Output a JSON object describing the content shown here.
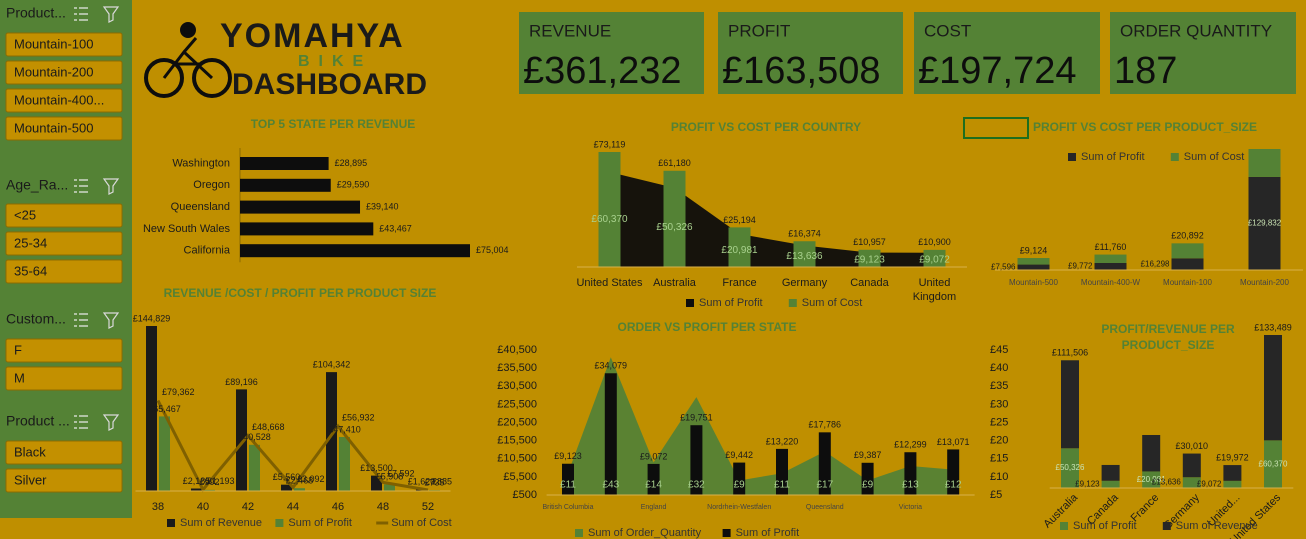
{
  "slicers": [
    {
      "title": "Product...",
      "items": [
        "Mountain-100",
        "Mountain-200",
        "Mountain-400...",
        "Mountain-500"
      ]
    },
    {
      "title": "Age_Ra...",
      "items": [
        "<25",
        "25-34",
        "35-64"
      ]
    },
    {
      "title": "Custom...",
      "items": [
        "F",
        "M"
      ]
    },
    {
      "title": "Product ...",
      "items": [
        "Black",
        "Silver"
      ]
    }
  ],
  "logo": {
    "brand": "YOMAHYA",
    "sub": "BIKE",
    "title": "DASHBOARD"
  },
  "kpis": [
    {
      "label": "REVENUE",
      "value": "£361,232"
    },
    {
      "label": "PROFIT",
      "value": "£163,508"
    },
    {
      "label": "COST",
      "value": "£197,724"
    },
    {
      "label": "ORDER QUANTITY",
      "value": "187"
    }
  ],
  "chart_data": [
    {
      "type": "bar",
      "orientation": "horizontal",
      "title": "TOP 5 STATE PER REVENUE",
      "categories": [
        "Washington",
        "Oregon",
        "Queensland",
        "New South Wales",
        "California"
      ],
      "values": [
        28895,
        29590,
        39140,
        43467,
        75004
      ],
      "value_labels": [
        "£28,895",
        "£29,590",
        "£39,140",
        "£43,467",
        "£75,004"
      ],
      "color": "#0d0d0d"
    },
    {
      "type": "combo",
      "title": "PROFIT VS COST PER COUNTRY",
      "categories": [
        "United States",
        "Australia",
        "France",
        "Germany",
        "Canada",
        "United Kingdom"
      ],
      "series": [
        {
          "name": "Sum of Profit",
          "kind": "area",
          "color": "#0d0d0d",
          "values": [
            60370,
            50326,
            20981,
            13636,
            9123,
            9072
          ],
          "value_labels": [
            "£60,370",
            "£50,326",
            "£20,981",
            "£13,636",
            "£9,123",
            "£9,072"
          ]
        },
        {
          "name": "Sum of Cost",
          "kind": "bar",
          "color": "#548235",
          "values": [
            73119,
            61180,
            25194,
            16374,
            10957,
            10900
          ],
          "value_labels": [
            "£73,119",
            "£61,180",
            "£25,194",
            "£16,374",
            "£10,957",
            "£10,900"
          ]
        }
      ]
    },
    {
      "type": "combo",
      "stacked": true,
      "title": "PROFIT VS COST PER PRODUCT_SIZE",
      "categories": [
        "Mountain-500",
        "Mountain-400-W",
        "Mountain-100",
        "Mountain-200"
      ],
      "series": [
        {
          "name": "Sum of Profit",
          "kind": "bar",
          "color": "#262626",
          "values": [
            7596,
            9772,
            16298,
            129832
          ],
          "value_labels": [
            "£7,596",
            "£9,772",
            "£16,298",
            "£129,832"
          ]
        },
        {
          "name": "Sum of Cost",
          "kind": "bar",
          "color": "#548235",
          "values": [
            9124,
            11760,
            20892,
            39000
          ],
          "value_labels": [
            "£9,124",
            "£11,760",
            "£20,892",
            null
          ]
        }
      ]
    },
    {
      "type": "combo",
      "title": "REVENUE /COST / PROFIT PER PRODUCT SIZE",
      "categories": [
        "38",
        "40",
        "42",
        "44",
        "46",
        "48",
        "52"
      ],
      "series": [
        {
          "name": "Sum of Revenue",
          "kind": "bar",
          "color": "#1a1a1a",
          "values": [
            144829,
            2185,
            89196,
            5560,
            104342,
            13500,
            1620
          ],
          "value_labels": [
            "£144,829",
            "£2,185",
            "£89,196",
            "£5,560",
            "£104,342",
            "£13,500",
            "£1,620"
          ]
        },
        {
          "name": "Sum of Profit",
          "kind": "bar",
          "color": "#548235",
          "values": [
            65467,
            992,
            40528,
            2468,
            47410,
            5908,
            735
          ],
          "value_labels": [
            "£65,467",
            "£992",
            "£40,528",
            "£2,468",
            "£47,410",
            "£5,908",
            "£735"
          ]
        },
        {
          "name": "Sum of Cost",
          "kind": "line",
          "color": "#7f6000",
          "values": [
            79362,
            1193,
            48668,
            3092,
            56932,
            7592,
            885
          ],
          "value_labels": [
            "£79,362",
            "£1,193",
            "£48,668",
            "£3,092",
            "£56,932",
            "£7,592",
            "£885"
          ]
        }
      ]
    },
    {
      "type": "combo",
      "title": "ORDER VS PROFIT PER STATE",
      "categories": [
        "British Columbia",
        null,
        "England",
        null,
        "Nordrhein-Westfalen",
        null,
        "Queensland",
        null,
        "Victoria",
        null
      ],
      "ylim": [
        500,
        40500
      ],
      "yticks": [
        {
          "value": 500,
          "label": "£500"
        },
        {
          "value": 5500,
          "label": "£5,500"
        },
        {
          "value": 10500,
          "label": "£10,500"
        },
        {
          "value": 15500,
          "label": "£15,500"
        },
        {
          "value": 20500,
          "label": "£20,500"
        },
        {
          "value": 25500,
          "label": "£25,500"
        },
        {
          "value": 30500,
          "label": "£30,500"
        },
        {
          "value": 35500,
          "label": "£35,500"
        },
        {
          "value": 40500,
          "label": "£40,500"
        }
      ],
      "y2lim": [
        5,
        45
      ],
      "y2ticks": [
        {
          "value": 5,
          "label": "£5"
        },
        {
          "value": 10,
          "label": "£10"
        },
        {
          "value": 15,
          "label": "£15"
        },
        {
          "value": 20,
          "label": "£20"
        },
        {
          "value": 25,
          "label": "£25"
        },
        {
          "value": 30,
          "label": "£30"
        },
        {
          "value": 35,
          "label": "£35"
        },
        {
          "value": 40,
          "label": "£40"
        },
        {
          "value": 45,
          "label": "£45"
        }
      ],
      "series": [
        {
          "name": "Sum of Order_Quantity",
          "kind": "area",
          "axis": "y2",
          "color": "#548235",
          "values": [
            11,
            43,
            14,
            32,
            9,
            11,
            17,
            9,
            13,
            12
          ],
          "value_labels": [
            "£11",
            "£43",
            "£14",
            "£32",
            "£9",
            "£11",
            "£17",
            "£9",
            "£13",
            "£12"
          ]
        },
        {
          "name": "Sum of Profit",
          "kind": "bar",
          "color": "#0d0d0d",
          "values": [
            9123,
            34079,
            9072,
            19751,
            9442,
            13220,
            17786,
            9387,
            12299,
            13071
          ],
          "value_labels": [
            "£9,123",
            "£34,079",
            "£9,072",
            "£19,751",
            "£9,442",
            "£13,220",
            "£17,786",
            "£9,387",
            "£12,299",
            "£13,071"
          ]
        }
      ]
    },
    {
      "type": "combo",
      "stacked": true,
      "title": "PROFIT/REVENUE PER PRODUCT_SIZE",
      "categories": [
        "Australia",
        "Canada",
        "France",
        "Germany",
        "United...",
        "United States"
      ],
      "series": [
        {
          "name": "Sum of Profit",
          "kind": "bar",
          "color": "#548235",
          "values": [
            50326,
            9123,
            20981,
            13636,
            9072,
            60370
          ],
          "value_labels": [
            "£50,326",
            "£9,123",
            "£20,981",
            "£13,636",
            "£9,072",
            "£60,370"
          ]
        },
        {
          "name": "Sum of Revenue",
          "kind": "bar",
          "color": "#262626",
          "values": [
            111506,
            20080,
            46175,
            30010,
            19972,
            133489
          ],
          "value_labels": [
            "£111,506",
            null,
            null,
            "£30,010",
            "£19,972",
            "£133,489"
          ]
        }
      ]
    }
  ]
}
